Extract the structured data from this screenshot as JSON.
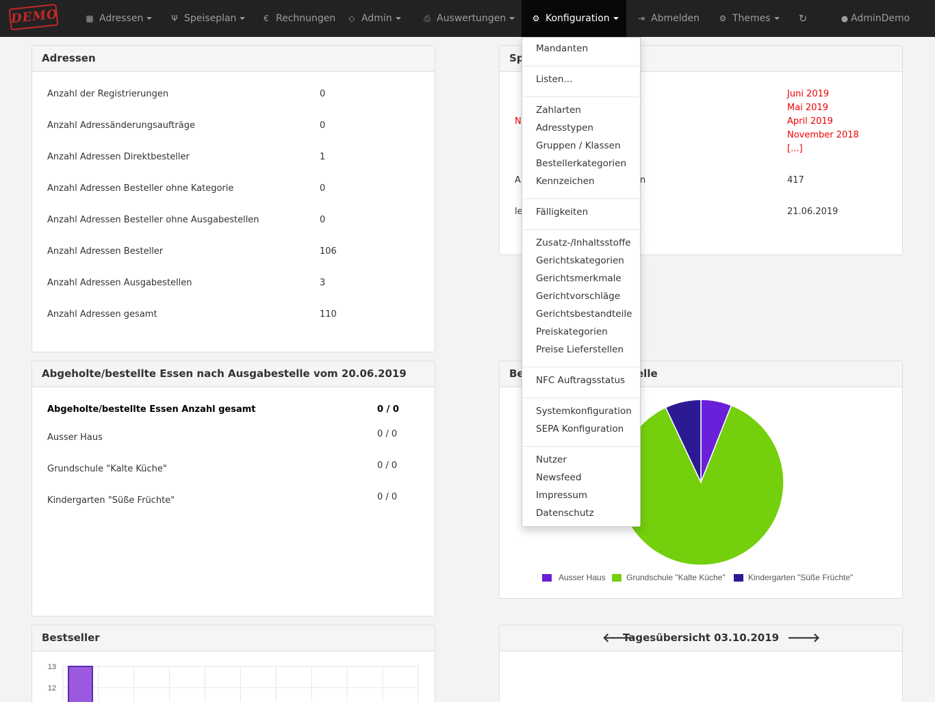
{
  "nav": {
    "logo": "DEMO",
    "adressen": "Adressen",
    "speiseplan": "Speiseplan",
    "rechnungen": "Rechnungen",
    "admin": "Admin",
    "auswertungen": "Auswertungen",
    "konfiguration": "Konfiguration",
    "abmelden": "Abmelden",
    "themes": "Themes",
    "user": "AdminDemo"
  },
  "adressen_panel": {
    "title": "Adressen",
    "rows": [
      {
        "label": "Anzahl der Registrierungen",
        "value": "0"
      },
      {
        "label": "Anzahl Adressänderungsaufträge",
        "value": "0"
      },
      {
        "label": "Anzahl Adressen Direktbesteller",
        "value": "1"
      },
      {
        "label": "Anzahl Adressen Besteller ohne Kategorie",
        "value": "0"
      },
      {
        "label": "Anzahl Adressen Besteller ohne Ausgabestellen",
        "value": "0"
      },
      {
        "label": "Anzahl Adressen Besteller",
        "value": "106"
      },
      {
        "label": "Anzahl Adressen Ausgabestellen",
        "value": "3"
      },
      {
        "label": "Anzahl Adressen gesamt",
        "value": "110"
      }
    ]
  },
  "speiseplan_panel": {
    "title_visible": "Sp",
    "left_fragments": [
      "N",
      "A",
      "le"
    ],
    "partial_label": "n",
    "months": [
      "Juni 2019",
      "Mai 2019",
      "April 2019",
      "November 2018",
      "[...]"
    ],
    "value_count": "417",
    "value_date": "21.06.2019"
  },
  "essen_panel": {
    "title": "Abgeholte/bestellte Essen nach Ausgabestelle vom 20.06.2019",
    "total_label": "Abgeholte/bestellte Essen Anzahl gesamt",
    "total_value": "0 / 0",
    "rows": [
      {
        "label": "Ausser Haus",
        "value": "0 / 0"
      },
      {
        "label": "Grundschule \"Kalte Küche\"",
        "value": "0 / 0"
      },
      {
        "label": "Kindergarten \"Süße Früchte\"",
        "value": "0 / 0"
      }
    ]
  },
  "pie_panel": {
    "title_left": "Be",
    "title_right": "elle"
  },
  "bestseller_panel": {
    "title": "Bestseller"
  },
  "tages_panel": {
    "title": "Tagesübersicht 03.10.2019"
  },
  "dropdown": {
    "groups": [
      [
        "Mandanten"
      ],
      [
        "Listen..."
      ],
      [
        "Zahlarten",
        "Adresstypen",
        "Gruppen / Klassen",
        "Bestellerkategorien",
        "Kennzeichen"
      ],
      [
        "Fälligkeiten"
      ],
      [
        "Zusatz-/Inhaltsstoffe",
        "Gerichtskategorien",
        "Gerichtsmerkmale",
        "Gerichtvorschläge",
        "Gerichtsbestandteile",
        "Preiskategorien",
        "Preise Lieferstellen"
      ],
      [
        "NFC Auftragsstatus"
      ],
      [
        "Systemkonfiguration",
        "SEPA Konfiguration"
      ],
      [
        "Nutzer",
        "Newsfeed",
        "Impressum",
        "Datenschutz"
      ]
    ]
  },
  "colors": {
    "navbar": "#222222",
    "accent_red": "#ee0000",
    "series_ausser_haus": "#6a1fd8",
    "series_grundschule": "#74cf0d",
    "series_kindergarten": "#2c1a94",
    "bestseller_bar": "#9b59e0"
  },
  "chart_data": [
    {
      "type": "pie",
      "categories": [
        "Ausser Haus",
        "Grundschule \"Kalte Küche\"",
        "Kindergarten \"Süße Früchte\""
      ],
      "values": [
        6,
        87,
        7
      ],
      "legend": "bottom"
    },
    {
      "type": "bar",
      "categories": [
        ""
      ],
      "values": [
        13
      ],
      "yticks": [
        "13",
        "12"
      ],
      "grid": true
    }
  ]
}
